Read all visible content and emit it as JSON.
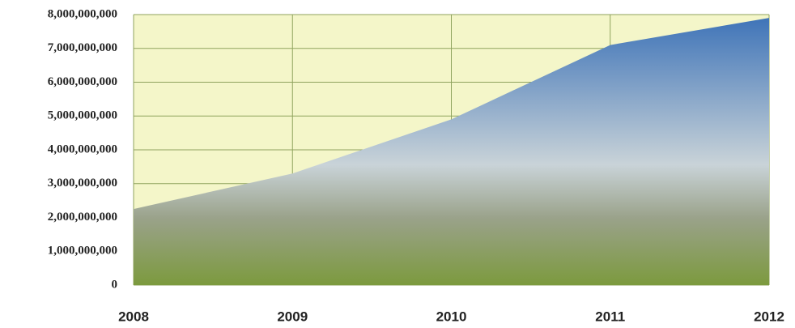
{
  "chart_data": {
    "type": "area",
    "x": [
      2008,
      2009,
      2010,
      2011,
      2012
    ],
    "values": [
      2250000000,
      3300000000,
      4900000000,
      7100000000,
      7900000000
    ],
    "color": "#3f74b8",
    "xlim": [
      2008,
      2012
    ],
    "xticks": [
      2008,
      2009,
      2010,
      2011,
      2012
    ],
    "ylim": [
      0,
      8000000000
    ],
    "yticks": [
      0,
      {
        "value": 1000000000,
        "label": "1,000,000,000"
      },
      {
        "value": 2000000000,
        "label": "2,000,000,000"
      },
      {
        "value": 3000000000,
        "label": "3,000,000,000"
      },
      {
        "value": 4000000000,
        "label": "4,000,000,000"
      },
      {
        "value": 5000000000,
        "label": "5,000,000,000"
      },
      {
        "value": 6000000000,
        "label": "6,000,000,000"
      },
      {
        "value": 7000000000,
        "label": "7,000,000,000"
      },
      {
        "value": 8000000000,
        "label": "8,000,000,000"
      }
    ],
    "grid": true
  }
}
